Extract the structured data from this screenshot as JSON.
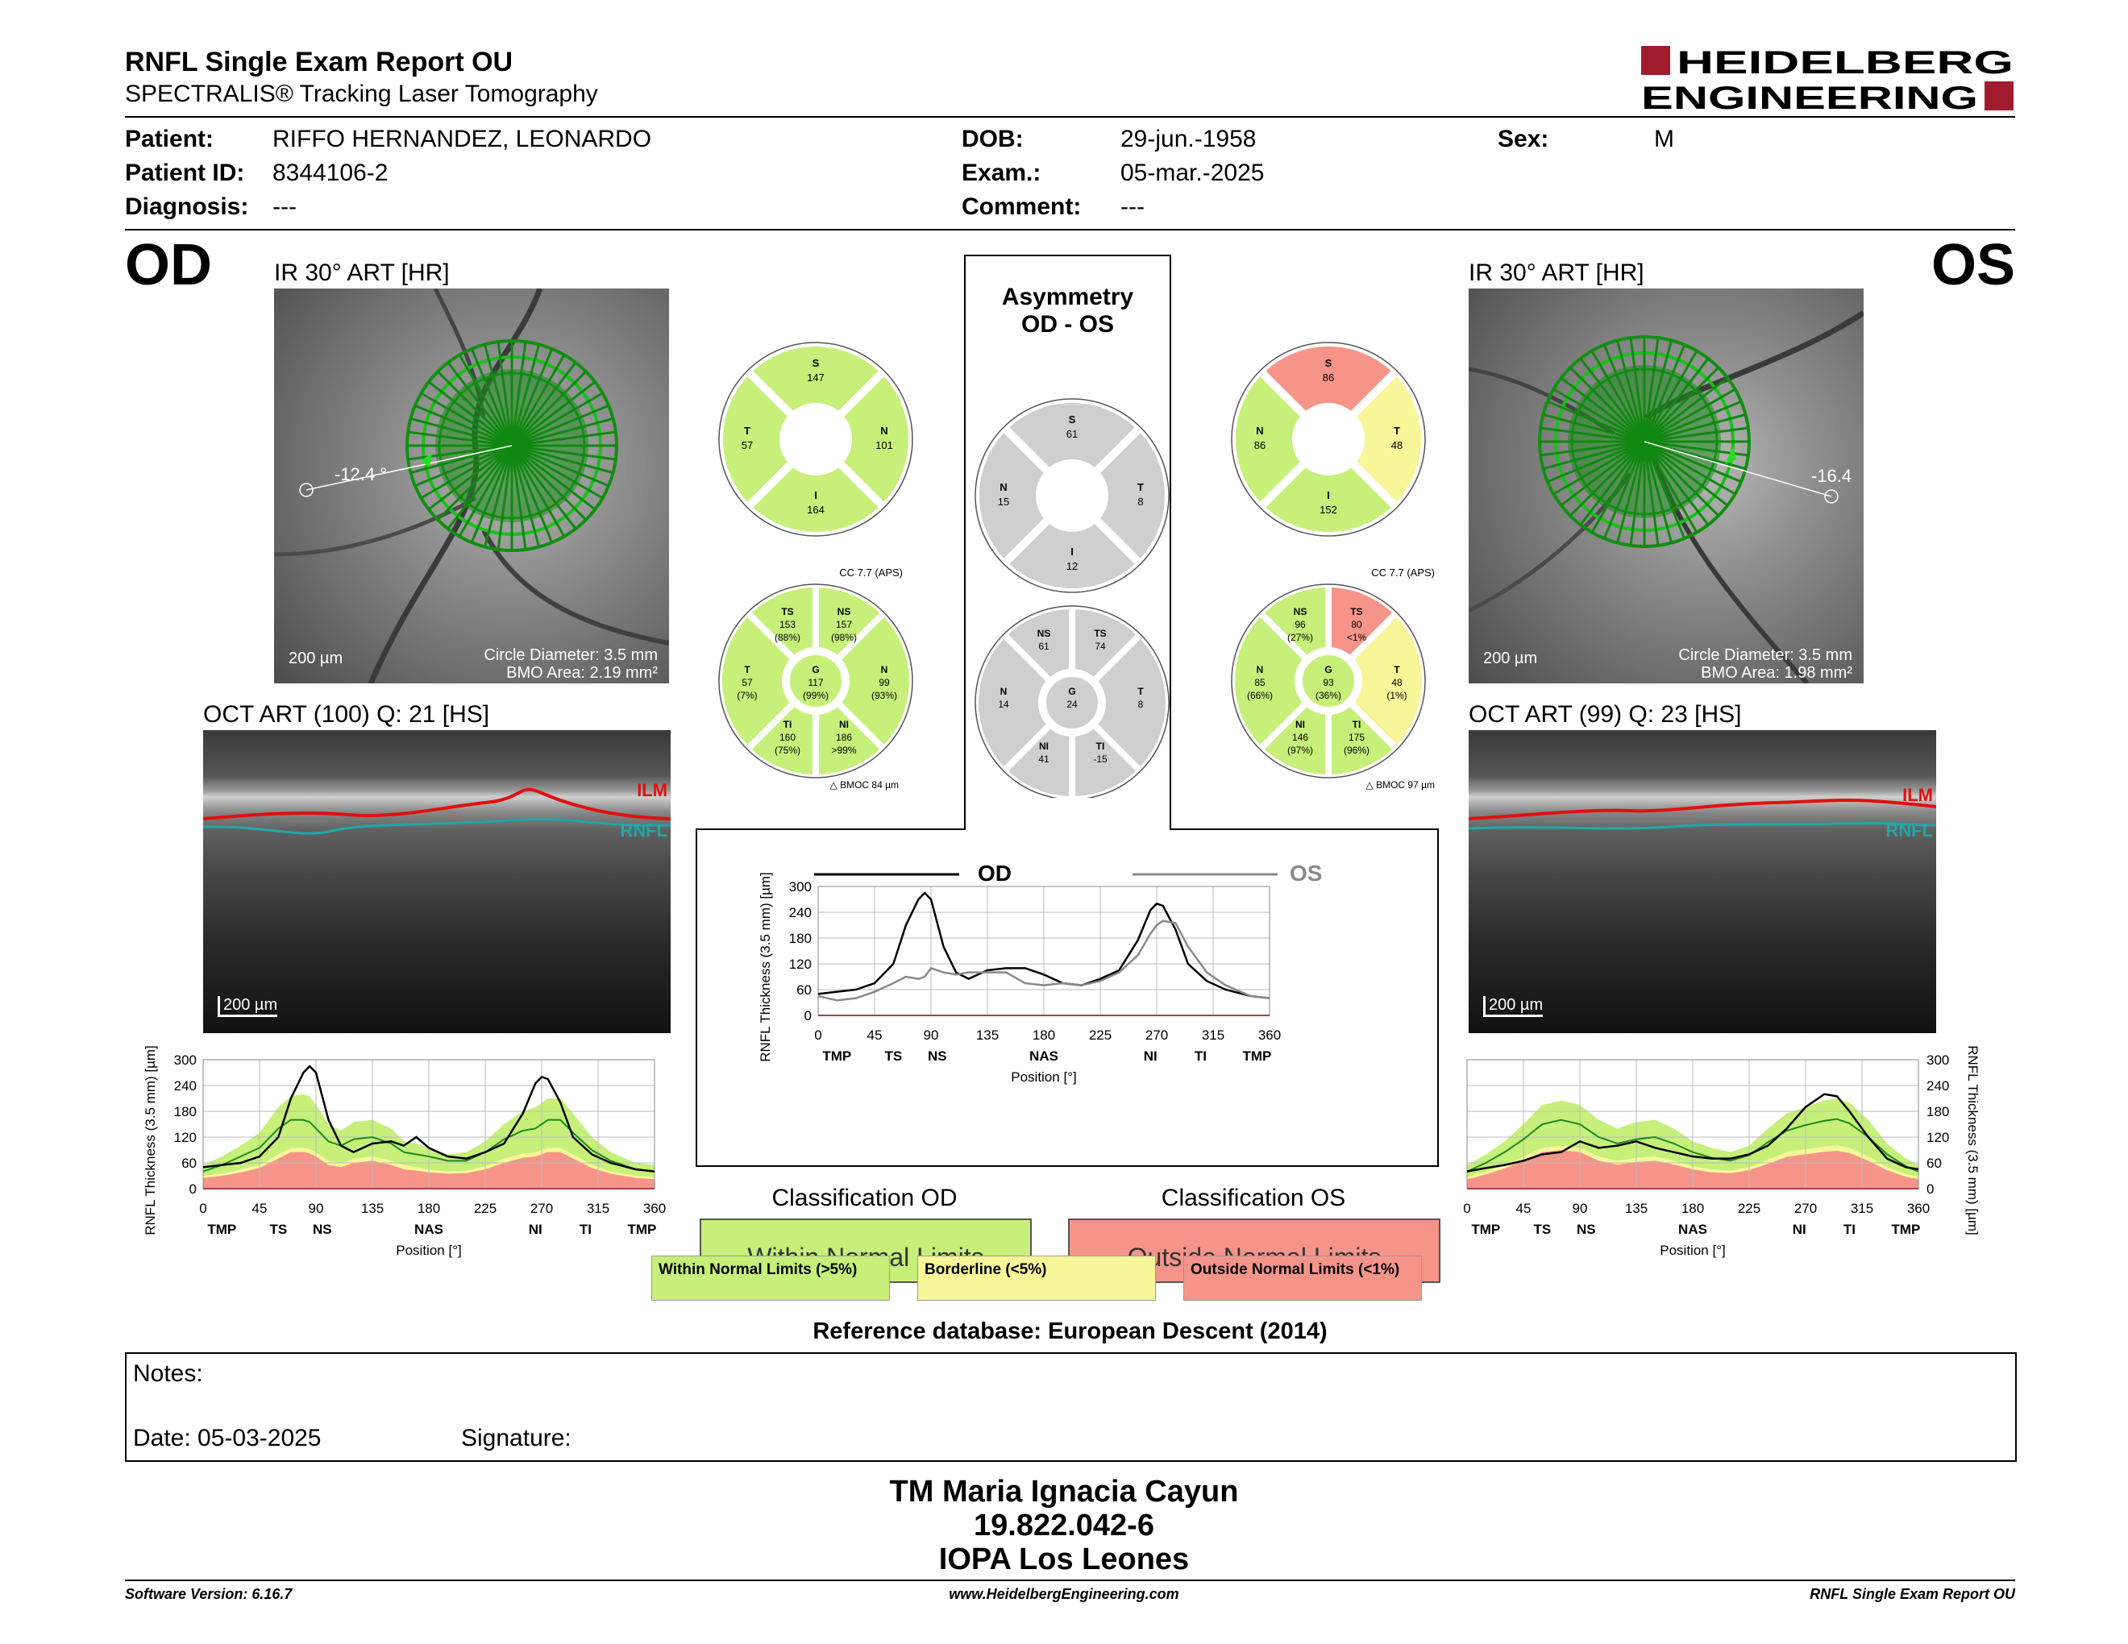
{
  "header": {
    "title": "RNFL Single Exam Report OU",
    "subtitle": "SPECTRALIS® Tracking Laser Tomography",
    "logo_line1": "HEIDELBERG",
    "logo_line2": "ENGINEERING"
  },
  "patient": {
    "patient_label": "Patient:",
    "patient_value": "RIFFO HERNANDEZ, LEONARDO",
    "id_label": "Patient ID:",
    "id_value": "8344106-2",
    "diagnosis_label": "Diagnosis:",
    "diagnosis_value": "---",
    "dob_label": "DOB:",
    "dob_value": "29-jun.-1958",
    "exam_label": "Exam.:",
    "exam_value": "05-mar.-2025",
    "comment_label": "Comment:",
    "comment_value": "---",
    "sex_label": "Sex:",
    "sex_value": "M"
  },
  "od": {
    "eye": "OD",
    "ir_caption": "IR 30° ART [HR]",
    "angle": "-12.4 °",
    "scale": "200 µm",
    "circle_diameter": "Circle Diameter: 3.5 mm",
    "bmo_area": "BMO Area: 2.19 mm²",
    "oct_caption": "OCT ART (100) Q: 21 [HS]",
    "oct_scale": "200 µm",
    "ilm": "ILM",
    "rnfl": "RNFL",
    "sector4": {
      "s": {
        "n": "S",
        "v": "147"
      },
      "t": {
        "n": "T",
        "v": "57"
      },
      "n": {
        "n": "N",
        "v": "101"
      },
      "i": {
        "n": "I",
        "v": "164"
      }
    },
    "cc": "CC 7.7 (APS)",
    "bmoc": "BMOC 84 µm",
    "sector6": {
      "ts": {
        "n": "TS",
        "v": "153",
        "p": "(88%)"
      },
      "ns": {
        "n": "NS",
        "v": "157",
        "p": "(98%)"
      },
      "t": {
        "n": "T",
        "v": "57",
        "p": "(7%)"
      },
      "g": {
        "n": "G",
        "v": "117",
        "p": "(99%)"
      },
      "n": {
        "n": "N",
        "v": "99",
        "p": "(93%)"
      },
      "ti": {
        "n": "TI",
        "v": "160",
        "p": "(75%)"
      },
      "ni": {
        "n": "NI",
        "v": "186",
        "p": ">99%"
      }
    },
    "classification_title": "Classification OD",
    "classification": "Within Normal Limits"
  },
  "os": {
    "eye": "OS",
    "ir_caption": "IR 30° ART [HR]",
    "angle": "-16.4",
    "scale": "200 µm",
    "circle_diameter": "Circle Diameter: 3.5 mm",
    "bmo_area": "BMO Area: 1.98 mm²",
    "oct_caption": "OCT ART (99) Q: 23 [HS]",
    "oct_scale": "200 µm",
    "ilm": "ILM",
    "rnfl": "RNFL",
    "sector4": {
      "s": {
        "n": "S",
        "v": "86"
      },
      "n": {
        "n": "N",
        "v": "86"
      },
      "t": {
        "n": "T",
        "v": "48"
      },
      "i": {
        "n": "I",
        "v": "152"
      }
    },
    "cc": "CC 7.7 (APS)",
    "bmoc": "BMOC 97 µm",
    "sector6": {
      "ns": {
        "n": "NS",
        "v": "96",
        "p": "(27%)"
      },
      "ts": {
        "n": "TS",
        "v": "80",
        "p": "<1%"
      },
      "n": {
        "n": "N",
        "v": "85",
        "p": "(66%)"
      },
      "g": {
        "n": "G",
        "v": "93",
        "p": "(36%)"
      },
      "t": {
        "n": "T",
        "v": "48",
        "p": "(1%)"
      },
      "ni": {
        "n": "NI",
        "v": "146",
        "p": "(97%)"
      },
      "ti": {
        "n": "TI",
        "v": "175",
        "p": "(96%)"
      }
    },
    "classification_title": "Classification OS",
    "classification": "Outside Normal Limits"
  },
  "asymmetry": {
    "title_line1": "Asymmetry",
    "title_line2": "OD - OS",
    "sector4": {
      "s": {
        "n": "S",
        "v": "61"
      },
      "n": {
        "n": "N",
        "v": "15"
      },
      "t": {
        "n": "T",
        "v": "8"
      },
      "i": {
        "n": "I",
        "v": "12"
      }
    },
    "sector6": {
      "ns": {
        "n": "NS",
        "v": "61"
      },
      "ts": {
        "n": "TS",
        "v": "74"
      },
      "n": {
        "n": "N",
        "v": "14"
      },
      "g": {
        "n": "G",
        "v": "24"
      },
      "t": {
        "n": "T",
        "v": "8"
      },
      "ni": {
        "n": "NI",
        "v": "41"
      },
      "ti": {
        "n": "TI",
        "v": "-15"
      }
    }
  },
  "colors": {
    "normal": "#c6f07a",
    "borderline": "#f7f79a",
    "outside": "#f7948a",
    "gray": "#cfcfcf",
    "od_line": "#000000",
    "os_line": "#8a8a8a",
    "ilm": "#e01010",
    "rnfl": "#20a8a8"
  },
  "chart_data": [
    {
      "type": "line",
      "name": "od_tsnit",
      "ylabel": "RNFL Thickness (3.5 mm) [µm]",
      "xlabel": "Position [°]",
      "yticks": [
        "300",
        "240",
        "180",
        "120",
        "60",
        "0"
      ],
      "xticks": [
        "0",
        "45",
        "90",
        "135",
        "180",
        "225",
        "270",
        "315",
        "360"
      ],
      "sectors": [
        "TMP",
        "TS",
        "NS",
        "NAS",
        "NI",
        "TI",
        "TMP"
      ],
      "xlim": [
        0,
        360
      ],
      "ylim": [
        0,
        300
      ],
      "x": [
        0,
        15,
        30,
        45,
        60,
        70,
        80,
        85,
        90,
        100,
        110,
        120,
        135,
        150,
        160,
        170,
        180,
        195,
        210,
        225,
        240,
        255,
        265,
        270,
        275,
        285,
        295,
        310,
        325,
        345,
        360
      ],
      "series": [
        {
          "values": [
            50,
            55,
            60,
            75,
            120,
            210,
            270,
            285,
            270,
            160,
            100,
            85,
            105,
            110,
            100,
            120,
            95,
            75,
            70,
            85,
            105,
            175,
            245,
            260,
            255,
            200,
            120,
            80,
            60,
            45,
            40
          ]
        }
      ],
      "normal_upper": [
        55,
        75,
        100,
        130,
        190,
        215,
        220,
        215,
        195,
        150,
        135,
        155,
        160,
        140,
        110,
        105,
        95,
        80,
        85,
        110,
        150,
        180,
        190,
        200,
        210,
        210,
        175,
        120,
        85,
        60,
        55
      ],
      "normal_mid": [
        40,
        55,
        75,
        95,
        140,
        160,
        160,
        155,
        140,
        110,
        100,
        115,
        120,
        105,
        85,
        80,
        75,
        65,
        65,
        85,
        115,
        135,
        140,
        150,
        160,
        160,
        130,
        90,
        65,
        45,
        40
      ],
      "borderline_upper": [
        30,
        35,
        45,
        55,
        80,
        95,
        95,
        92,
        85,
        65,
        60,
        70,
        75,
        65,
        55,
        50,
        45,
        40,
        42,
        52,
        70,
        82,
        85,
        90,
        95,
        95,
        80,
        55,
        40,
        30,
        28
      ],
      "outside_upper": [
        25,
        30,
        38,
        48,
        70,
        85,
        85,
        82,
        75,
        55,
        50,
        60,
        65,
        55,
        45,
        42,
        38,
        35,
        36,
        45,
        60,
        72,
        75,
        80,
        85,
        85,
        70,
        48,
        35,
        25,
        22
      ]
    },
    {
      "type": "line",
      "name": "os_tsnit",
      "ylabel": "RNFL Thickness (3.5 mm) [µm]",
      "xlabel": "Position [°]",
      "yticks": [
        "300",
        "240",
        "180",
        "120",
        "60",
        "0"
      ],
      "xticks": [
        "0",
        "45",
        "90",
        "135",
        "180",
        "225",
        "270",
        "315",
        "360"
      ],
      "sectors": [
        "TMP",
        "TS",
        "NS",
        "NAS",
        "NI",
        "TI",
        "TMP"
      ],
      "xlim": [
        0,
        360
      ],
      "ylim": [
        0,
        300
      ],
      "x": [
        0,
        15,
        30,
        45,
        60,
        75,
        90,
        105,
        120,
        135,
        150,
        165,
        180,
        195,
        210,
        225,
        240,
        255,
        270,
        285,
        295,
        305,
        320,
        335,
        350,
        360
      ],
      "series": [
        {
          "values": [
            40,
            48,
            55,
            65,
            80,
            85,
            110,
            95,
            100,
            110,
            95,
            85,
            75,
            70,
            70,
            80,
            100,
            140,
            190,
            220,
            215,
            180,
            120,
            70,
            50,
            45
          ]
        }
      ],
      "normal_upper": [
        55,
        80,
        110,
        150,
        195,
        205,
        195,
        160,
        140,
        155,
        160,
        140,
        110,
        95,
        85,
        100,
        140,
        175,
        190,
        205,
        210,
        200,
        160,
        105,
        70,
        55
      ],
      "normal_mid": [
        40,
        60,
        85,
        115,
        150,
        160,
        150,
        120,
        105,
        115,
        120,
        105,
        85,
        72,
        65,
        78,
        108,
        135,
        148,
        158,
        162,
        152,
        120,
        80,
        52,
        40
      ],
      "borderline_upper": [
        28,
        40,
        55,
        75,
        95,
        100,
        95,
        75,
        65,
        72,
        75,
        65,
        52,
        45,
        42,
        50,
        68,
        85,
        92,
        98,
        100,
        95,
        75,
        50,
        34,
        28
      ],
      "outside_upper": [
        22,
        33,
        47,
        65,
        85,
        90,
        85,
        65,
        56,
        62,
        65,
        56,
        45,
        38,
        36,
        43,
        58,
        74,
        80,
        86,
        88,
        83,
        65,
        43,
        28,
        22
      ]
    },
    {
      "type": "line",
      "name": "asymmetry_tsnit",
      "ylabel": "RNFL Thickness (3.5 mm) [µm]",
      "xlabel": "Position [°]",
      "yticks": [
        "300",
        "240",
        "180",
        "120",
        "60",
        "0"
      ],
      "xticks": [
        "0",
        "45",
        "90",
        "135",
        "180",
        "225",
        "270",
        "315",
        "360"
      ],
      "sectors": [
        "TMP",
        "TS",
        "NS",
        "NAS",
        "NI",
        "TI",
        "TMP"
      ],
      "xlim": [
        0,
        360
      ],
      "ylim": [
        0,
        300
      ],
      "x": [
        0,
        15,
        30,
        45,
        60,
        70,
        80,
        85,
        90,
        100,
        110,
        120,
        135,
        150,
        165,
        180,
        195,
        210,
        225,
        240,
        255,
        265,
        270,
        275,
        285,
        295,
        310,
        325,
        345,
        360
      ],
      "series": [
        {
          "name": "OD",
          "values": [
            50,
            55,
            60,
            75,
            120,
            210,
            270,
            285,
            270,
            160,
            100,
            85,
            105,
            110,
            110,
            95,
            75,
            70,
            85,
            105,
            175,
            245,
            260,
            255,
            200,
            120,
            80,
            60,
            45,
            40
          ]
        },
        {
          "name": "OS",
          "values": [
            45,
            35,
            40,
            55,
            75,
            90,
            85,
            90,
            110,
            100,
            95,
            100,
            100,
            100,
            75,
            70,
            75,
            70,
            80,
            100,
            140,
            190,
            210,
            220,
            215,
            160,
            100,
            70,
            45,
            40
          ]
        }
      ]
    }
  ],
  "legend": {
    "normal": "Within Normal Limits (>5%)",
    "borderline": "Borderline (<5%)",
    "outside": "Outside Normal Limits (<1%)"
  },
  "reference_db": "Reference database: European Descent (2014)",
  "notes": {
    "notes_label": "Notes:",
    "date_label": "Date: 05-03-2025",
    "signature_label": "Signature:"
  },
  "signature": {
    "line1": "TM Maria Ignacia Cayun",
    "line2": "19.822.042-6",
    "line3": "IOPA Los Leones"
  },
  "footer": {
    "software": "Software Version: 6.16.7",
    "website": "www.HeidelbergEngineering.com",
    "report": "RNFL Single Exam Report OU"
  }
}
